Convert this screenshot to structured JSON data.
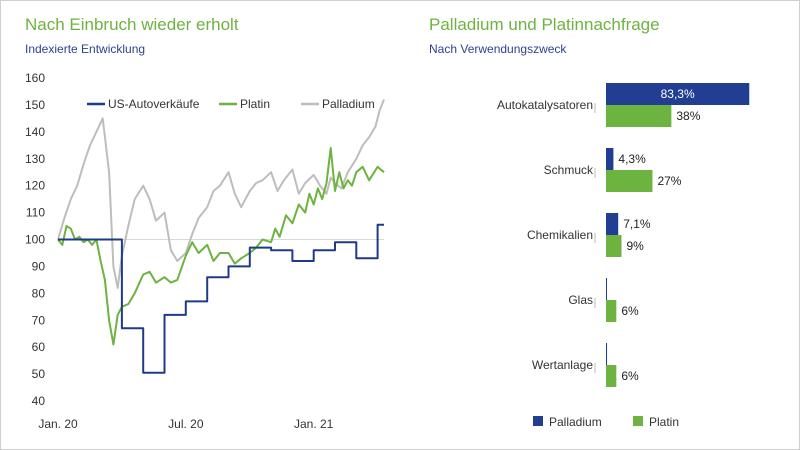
{
  "colors": {
    "title": "#6db33f",
    "subtitle": "#2b4393",
    "us_auto": "#1f3a8a",
    "platin": "#6db33f",
    "palladium": "#bdbdbd",
    "palladium_bar": "#213e93",
    "platin_bar": "#6db33f",
    "axis_text": "#333333"
  },
  "left": {
    "title": "Nach Einbruch wieder erholt",
    "subtitle": "Indexierte Entwicklung"
  },
  "right": {
    "title": "Palladium und Platinnachfrage",
    "subtitle": "Nach Verwendungszweck"
  },
  "chart_data": [
    {
      "type": "line",
      "title": "Nach Einbruch wieder erholt",
      "subtitle": "Indexierte Entwicklung",
      "x_unit": "months since Jan. 20",
      "xlim": [
        0,
        15.3
      ],
      "ylim": [
        40,
        160
      ],
      "yticks": [
        40,
        50,
        60,
        70,
        80,
        90,
        100,
        110,
        120,
        130,
        140,
        150,
        160
      ],
      "xticks": [
        {
          "label": "Jan. 20",
          "x": 0
        },
        {
          "label": "Jul. 20",
          "x": 6
        },
        {
          "label": "Jan. 21",
          "x": 12
        }
      ],
      "reference_line": 100,
      "legend": [
        "US-Autoverkäufe",
        "Platin",
        "Palladium"
      ],
      "legend_position": "top",
      "series": [
        {
          "name": "US-Autoverkäufe",
          "step": true,
          "x": [
            0,
            1,
            2,
            3,
            4,
            5,
            6,
            7,
            8,
            9,
            10,
            11,
            12,
            13,
            14,
            15,
            15.3
          ],
          "y": [
            100,
            100,
            100,
            67,
            50.5,
            72,
            77,
            86,
            90,
            97,
            96,
            92,
            96,
            99,
            93,
            105.5,
            105.5
          ]
        },
        {
          "name": "Platin",
          "x": [
            0,
            0.2,
            0.4,
            0.6,
            0.8,
            1.0,
            1.2,
            1.4,
            1.6,
            1.8,
            2.0,
            2.2,
            2.4,
            2.6,
            2.8,
            3.0,
            3.3,
            3.6,
            4.0,
            4.3,
            4.6,
            5.0,
            5.3,
            5.6,
            6.0,
            6.3,
            6.6,
            7.0,
            7.3,
            7.6,
            8.0,
            8.3,
            8.6,
            9.0,
            9.3,
            9.6,
            10.0,
            10.2,
            10.4,
            10.7,
            11.0,
            11.3,
            11.6,
            11.8,
            12.0,
            12.2,
            12.4,
            12.6,
            12.8,
            13.0,
            13.2,
            13.4,
            13.6,
            13.8,
            14.0,
            14.3,
            14.6,
            15.0,
            15.3
          ],
          "y": [
            100,
            98,
            105,
            104,
            100,
            101,
            99,
            100,
            98,
            100,
            92,
            85,
            70,
            61,
            72,
            75,
            76,
            80,
            87,
            88,
            84,
            86,
            84,
            85,
            94,
            99,
            95,
            98,
            92,
            95,
            95,
            91,
            93,
            95,
            97,
            100,
            99,
            104,
            101,
            109,
            106,
            113,
            110,
            117,
            113,
            119,
            115,
            121,
            134,
            118,
            125,
            119,
            122,
            120,
            125,
            127,
            122,
            127,
            125
          ]
        },
        {
          "name": "Palladium",
          "x": [
            0,
            0.3,
            0.6,
            0.9,
            1.2,
            1.5,
            1.8,
            2.1,
            2.4,
            2.6,
            2.8,
            3.0,
            3.3,
            3.6,
            4.0,
            4.3,
            4.6,
            5.0,
            5.3,
            5.6,
            6.0,
            6.3,
            6.6,
            7.0,
            7.3,
            7.6,
            8.0,
            8.3,
            8.6,
            9.0,
            9.3,
            9.6,
            10.0,
            10.3,
            10.6,
            11.0,
            11.3,
            11.6,
            12.0,
            12.3,
            12.6,
            12.8,
            13.0,
            13.3,
            13.6,
            14.0,
            14.3,
            14.6,
            14.9,
            15.1,
            15.3
          ],
          "y": [
            100,
            108,
            115,
            120,
            128,
            135,
            140,
            145,
            125,
            90,
            82,
            94,
            105,
            115,
            120,
            115,
            107,
            110,
            96,
            92,
            95,
            102,
            108,
            112,
            118,
            120,
            125,
            117,
            112,
            118,
            121,
            122,
            125,
            118,
            122,
            126,
            117,
            121,
            124,
            120,
            117,
            123,
            121,
            119,
            125,
            130,
            135,
            138,
            142,
            148,
            152
          ]
        }
      ]
    },
    {
      "type": "bar",
      "orientation": "horizontal",
      "title": "Palladium und Platinnachfrage",
      "subtitle": "Nach Verwendungszweck",
      "categories": [
        "Autokatalysatoren",
        "Schmuck",
        "Chemikalien",
        "Glas",
        "Wertanlage"
      ],
      "xlim": [
        0,
        100
      ],
      "legend": [
        "Palladium",
        "Platin"
      ],
      "legend_position": "bottom",
      "series": [
        {
          "name": "Palladium",
          "values": [
            83.3,
            4.3,
            7.1,
            0.2,
            0.6
          ],
          "labels": [
            "83,3%",
            "4,3%",
            "7,1%",
            "",
            ""
          ]
        },
        {
          "name": "Platin",
          "values": [
            38,
            27,
            9,
            6,
            6
          ],
          "labels": [
            "38%",
            "27%",
            "9%",
            "6%",
            "6%"
          ]
        }
      ]
    }
  ]
}
